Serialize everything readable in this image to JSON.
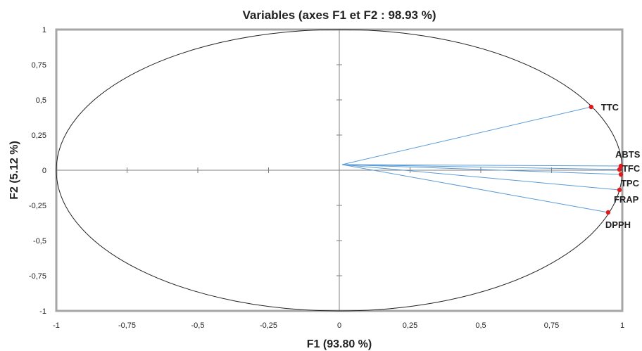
{
  "chart_data": {
    "type": "scatter",
    "title": "Variables (axes F1 et F2 : 98.93 %)",
    "xlabel": "F1 (93.80 %)",
    "ylabel": "F2 (5.12 %)",
    "xlim": [
      -1,
      1
    ],
    "ylim": [
      -1,
      1
    ],
    "x_ticks": [
      "-1",
      "-0,75",
      "-0,5",
      "-0,25",
      "0",
      "0,25",
      "0,5",
      "0,75",
      "1"
    ],
    "y_ticks": [
      "1",
      "0,75",
      "0,5",
      "0,25",
      "0",
      "-0,25",
      "-0,5",
      "-0,75",
      "-1"
    ],
    "unit_circle": true,
    "vector_origin": [
      0.01,
      0.04
    ],
    "points": [
      {
        "label": "TTC",
        "x": 0.89,
        "y": 0.45
      },
      {
        "label": "ABTS",
        "x": 0.995,
        "y": 0.03
      },
      {
        "label": "TFC",
        "x": 0.99,
        "y": 0.005
      },
      {
        "label": "TPC",
        "x": 0.995,
        "y": -0.03
      },
      {
        "label": "FRAP",
        "x": 0.99,
        "y": -0.14
      },
      {
        "label": "DPPH",
        "x": 0.95,
        "y": -0.3
      }
    ],
    "colors": {
      "vector": "#5b9bd5",
      "point": "#e31a1c",
      "frame": "#a6a6a6",
      "axis": "#7f7f7f"
    }
  }
}
